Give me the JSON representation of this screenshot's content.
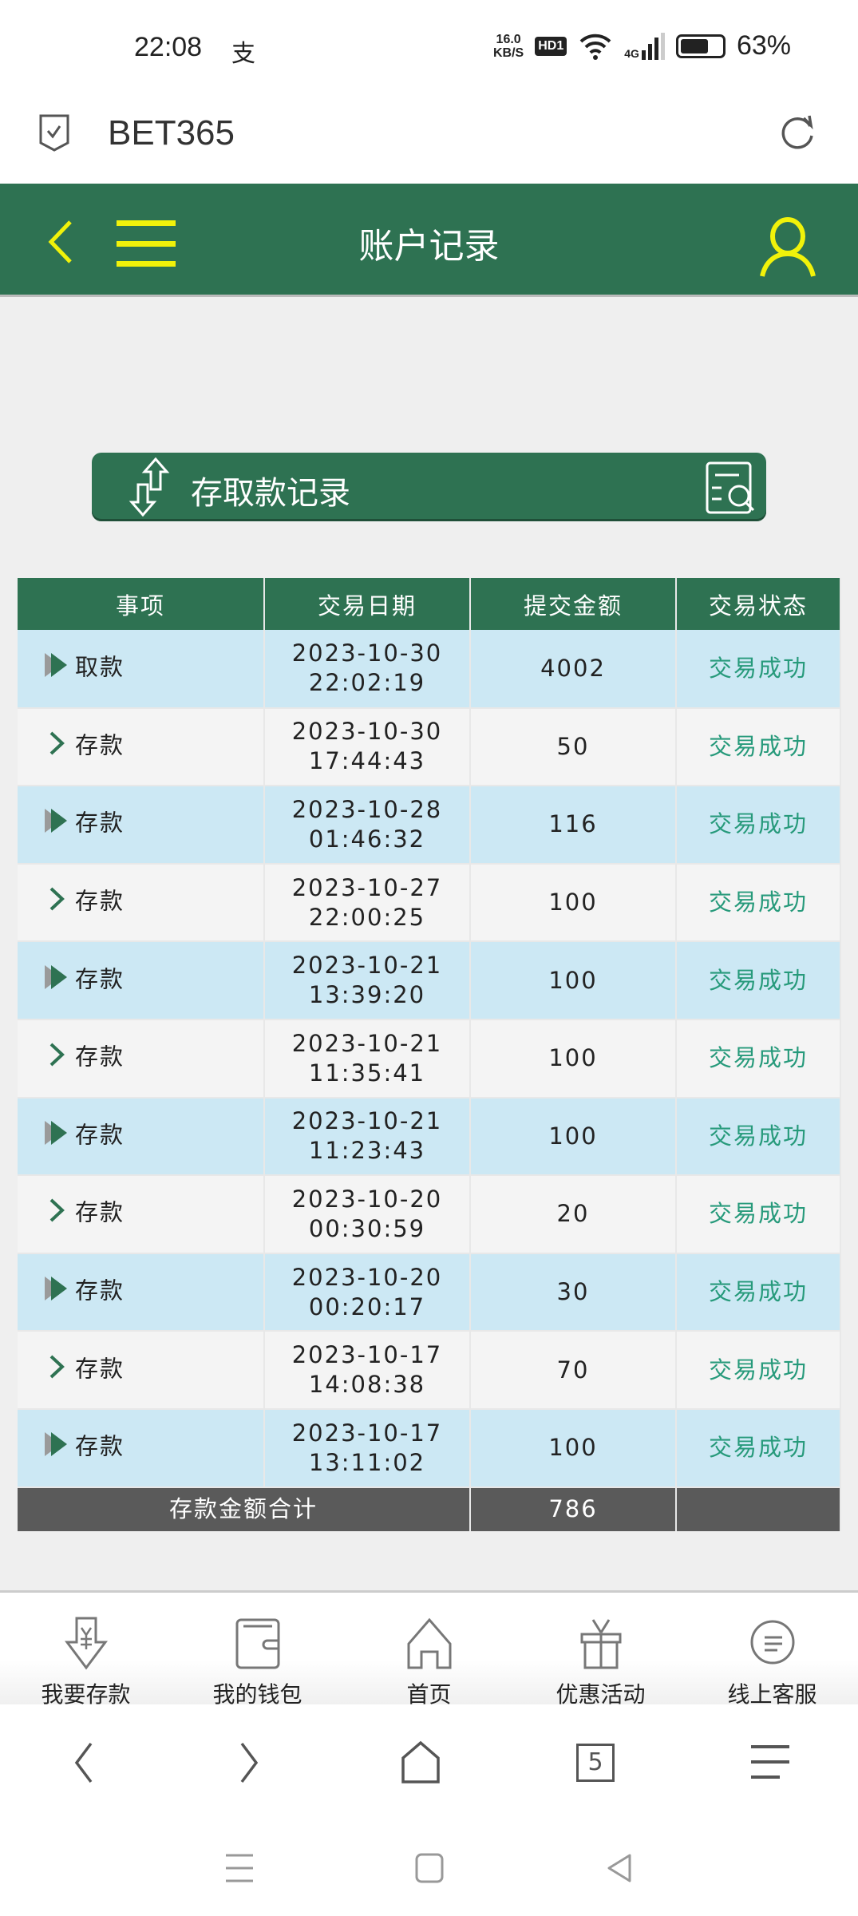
{
  "status_bar": {
    "time": "22:08",
    "alipay_icon": "支",
    "net_speed": "16.0",
    "net_unit": "KB/S",
    "hd": "HD1",
    "network": "4G",
    "battery": "63%",
    "battery_level": 0.63
  },
  "browser": {
    "title": "BET365"
  },
  "header": {
    "title": "账户记录",
    "accent": "#f1f20a",
    "bg": "#2e7252"
  },
  "banner": {
    "label": "存取款记录"
  },
  "table": {
    "headers": [
      "事项",
      "交易日期",
      "提交金额",
      "交易状态"
    ],
    "rows": [
      {
        "item": "取款",
        "date": "2023-10-30",
        "time": "22:02:19",
        "amount": "4002",
        "status": "交易成功"
      },
      {
        "item": "存款",
        "date": "2023-10-30",
        "time": "17:44:43",
        "amount": "50",
        "status": "交易成功"
      },
      {
        "item": "存款",
        "date": "2023-10-28",
        "time": "01:46:32",
        "amount": "116",
        "status": "交易成功"
      },
      {
        "item": "存款",
        "date": "2023-10-27",
        "time": "22:00:25",
        "amount": "100",
        "status": "交易成功"
      },
      {
        "item": "存款",
        "date": "2023-10-21",
        "time": "13:39:20",
        "amount": "100",
        "status": "交易成功"
      },
      {
        "item": "存款",
        "date": "2023-10-21",
        "time": "11:35:41",
        "amount": "100",
        "status": "交易成功"
      },
      {
        "item": "存款",
        "date": "2023-10-21",
        "time": "11:23:43",
        "amount": "100",
        "status": "交易成功"
      },
      {
        "item": "存款",
        "date": "2023-10-20",
        "time": "00:30:59",
        "amount": "20",
        "status": "交易成功"
      },
      {
        "item": "存款",
        "date": "2023-10-20",
        "time": "00:20:17",
        "amount": "30",
        "status": "交易成功"
      },
      {
        "item": "存款",
        "date": "2023-10-17",
        "time": "14:08:38",
        "amount": "70",
        "status": "交易成功"
      },
      {
        "item": "存款",
        "date": "2023-10-17",
        "time": "13:11:02",
        "amount": "100",
        "status": "交易成功"
      }
    ],
    "summary": {
      "label": "存款金额合计",
      "amount": "786"
    }
  },
  "tabs": [
    {
      "label": "我要存款",
      "icon": "deposit-icon"
    },
    {
      "label": "我的钱包",
      "icon": "wallet-icon"
    },
    {
      "label": "首页",
      "icon": "home-icon"
    },
    {
      "label": "优惠活动",
      "icon": "gift-icon"
    },
    {
      "label": "线上客服",
      "icon": "support-icon"
    }
  ],
  "browser_nav": {
    "tab_count": "5"
  }
}
